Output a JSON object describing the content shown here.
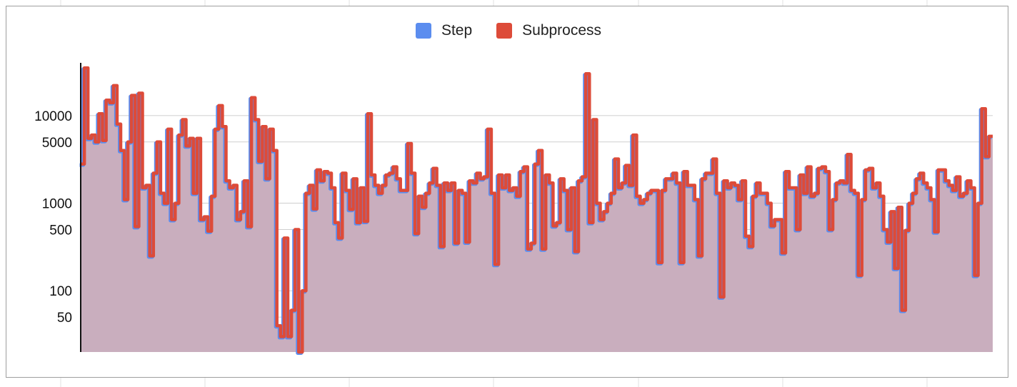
{
  "chart_data": {
    "type": "area",
    "title": "",
    "xlabel": "",
    "ylabel": "",
    "yscale": "log",
    "ylim": [
      20,
      40000
    ],
    "yticks": [
      50,
      100,
      500,
      1000,
      5000,
      10000
    ],
    "ytick_labels": [
      "50",
      "100",
      "500",
      "1000",
      "5000",
      "10000"
    ],
    "grid": true,
    "legend_position": "top",
    "colors": {
      "step": "#5b8def",
      "subprocess": "#dd4b39",
      "fill": "#c9aebe"
    },
    "series": [
      {
        "name": "Step",
        "values": []
      },
      {
        "name": "Subprocess",
        "values": [
          2800,
          35000,
          5500,
          6000,
          5000,
          10500,
          5200,
          15000,
          14000,
          22000,
          8000,
          4000,
          1100,
          5000,
          17000,
          540,
          18000,
          1500,
          1600,
          250,
          2200,
          5000,
          1300,
          1000,
          7000,
          650,
          1000,
          6000,
          9000,
          4500,
          5500,
          1300,
          5500,
          650,
          700,
          480,
          1200,
          7000,
          13000,
          7500,
          1800,
          1500,
          1600,
          650,
          800,
          1800,
          540,
          16000,
          9000,
          3000,
          7500,
          1900,
          7000,
          4000,
          40,
          30,
          400,
          30,
          60,
          500,
          20,
          100,
          1300,
          1600,
          860,
          2400,
          1800,
          2300,
          2200,
          1500,
          600,
          400,
          2200,
          1400,
          850,
          1900,
          600,
          1500,
          620,
          10500,
          2100,
          1600,
          1300,
          1600,
          2100,
          2200,
          2600,
          1900,
          1400,
          1400,
          4800,
          2200,
          450,
          1200,
          900,
          1300,
          1700,
          2500,
          1600,
          320,
          1700,
          1400,
          1700,
          350,
          1400,
          1300,
          360,
          1800,
          1700,
          2200,
          1900,
          2000,
          7000,
          1300,
          200,
          2100,
          1500,
          2100,
          1400,
          1500,
          1200,
          2300,
          2600,
          300,
          350,
          2800,
          4000,
          300,
          2100,
          1700,
          550,
          600,
          1900,
          1400,
          500,
          1500,
          280,
          1800,
          2000,
          30000,
          600,
          9000,
          1000,
          650,
          800,
          1000,
          1300,
          3200,
          1500,
          1700,
          2700,
          1600,
          6000,
          1200,
          1000,
          1100,
          1300,
          1400,
          1400,
          210,
          1400,
          1900,
          1900,
          2200,
          1700,
          210,
          2300,
          1600,
          1600,
          1100,
          250,
          1900,
          2200,
          2200,
          3200,
          1300,
          85,
          1800,
          1500,
          1700,
          1600,
          1100,
          1800,
          420,
          320,
          1200,
          1700,
          1300,
          1300,
          1000,
          550,
          650,
          650,
          270,
          2300,
          1500,
          1500,
          500,
          2100,
          1300,
          2600,
          1200,
          1300,
          2500,
          2600,
          2300,
          500,
          1100,
          1700,
          1800,
          1700,
          3600,
          1400,
          1300,
          150,
          1100,
          2400,
          2500,
          1500,
          1700,
          1200,
          500,
          360,
          800,
          180,
          900,
          60,
          490,
          1000,
          1300,
          1900,
          2200,
          1700,
          1500,
          1100,
          470,
          2400,
          2400,
          1800,
          1600,
          1400,
          2000,
          1200,
          1300,
          1800,
          1500,
          150,
          1000,
          12000,
          3400,
          5800
        ]
      }
    ]
  }
}
